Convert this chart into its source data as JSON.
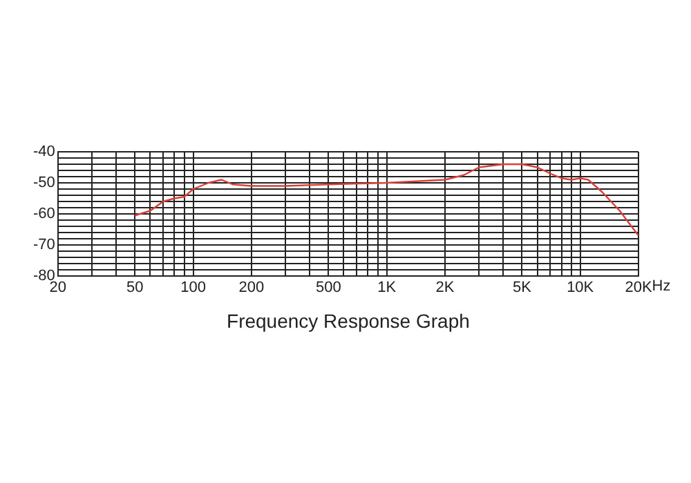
{
  "chart_data": {
    "type": "line",
    "xlabel": "Frequency Response Graph",
    "x": [
      50,
      60,
      70,
      80,
      90,
      100,
      120,
      140,
      160,
      200,
      300,
      500,
      1000,
      2000,
      2500,
      3000,
      4000,
      5000,
      6000,
      7000,
      8000,
      9000,
      10000,
      11000,
      13000,
      16000,
      20000
    ],
    "series": [
      {
        "color": "#d9403a",
        "values": [
          -60.5,
          -59,
          -56,
          -55,
          -54.5,
          -52,
          -50,
          -49,
          -50.5,
          -51,
          -51,
          -50.5,
          -50,
          -49,
          -47.5,
          -45,
          -44,
          -44,
          -45,
          -47,
          -48.5,
          -49,
          -48.5,
          -49,
          -53,
          -59,
          -67
        ]
      }
    ],
    "log": "x",
    "xlim": [
      20,
      20000
    ],
    "xticks": [
      {
        "value": 20,
        "label": "20"
      },
      {
        "value": 30,
        "label": null
      },
      {
        "value": 40,
        "label": null
      },
      {
        "value": 50,
        "label": "50"
      },
      {
        "value": 60,
        "label": null
      },
      {
        "value": 70,
        "label": null
      },
      {
        "value": 80,
        "label": null
      },
      {
        "value": 90,
        "label": null
      },
      {
        "value": 100,
        "label": "100"
      },
      {
        "value": 200,
        "label": "200"
      },
      {
        "value": 300,
        "label": null
      },
      {
        "value": 400,
        "label": null
      },
      {
        "value": 500,
        "label": "500"
      },
      {
        "value": 600,
        "label": null
      },
      {
        "value": 700,
        "label": null
      },
      {
        "value": 800,
        "label": null
      },
      {
        "value": 900,
        "label": null
      },
      {
        "value": 1000,
        "label": "1K"
      },
      {
        "value": 2000,
        "label": "2K"
      },
      {
        "value": 3000,
        "label": null
      },
      {
        "value": 4000,
        "label": null
      },
      {
        "value": 5000,
        "label": "5K"
      },
      {
        "value": 6000,
        "label": null
      },
      {
        "value": 7000,
        "label": null
      },
      {
        "value": 8000,
        "label": null
      },
      {
        "value": 9000,
        "label": null
      },
      {
        "value": 10000,
        "label": "10K"
      },
      {
        "value": 20000,
        "label": "20K"
      }
    ],
    "annotations": [
      "Hz"
    ],
    "ylim": [
      -80,
      -40
    ],
    "yticks": [
      -80,
      {
        "value": -78,
        "label": null
      },
      {
        "value": -76,
        "label": null
      },
      {
        "value": -74,
        "label": null
      },
      {
        "value": -72,
        "label": null
      },
      -70,
      {
        "value": -68,
        "label": null
      },
      {
        "value": -66,
        "label": null
      },
      {
        "value": -64,
        "label": null
      },
      {
        "value": -62,
        "label": null
      },
      -60,
      {
        "value": -58,
        "label": null
      },
      {
        "value": -56,
        "label": null
      },
      {
        "value": -54,
        "label": null
      },
      {
        "value": -52,
        "label": null
      },
      -50,
      {
        "value": -48,
        "label": null
      },
      {
        "value": -46,
        "label": null
      },
      {
        "value": -44,
        "label": null
      },
      {
        "value": -42,
        "label": null
      },
      -40
    ],
    "grid": true,
    "marker": "none",
    "line_style": "solid",
    "legend": false
  }
}
